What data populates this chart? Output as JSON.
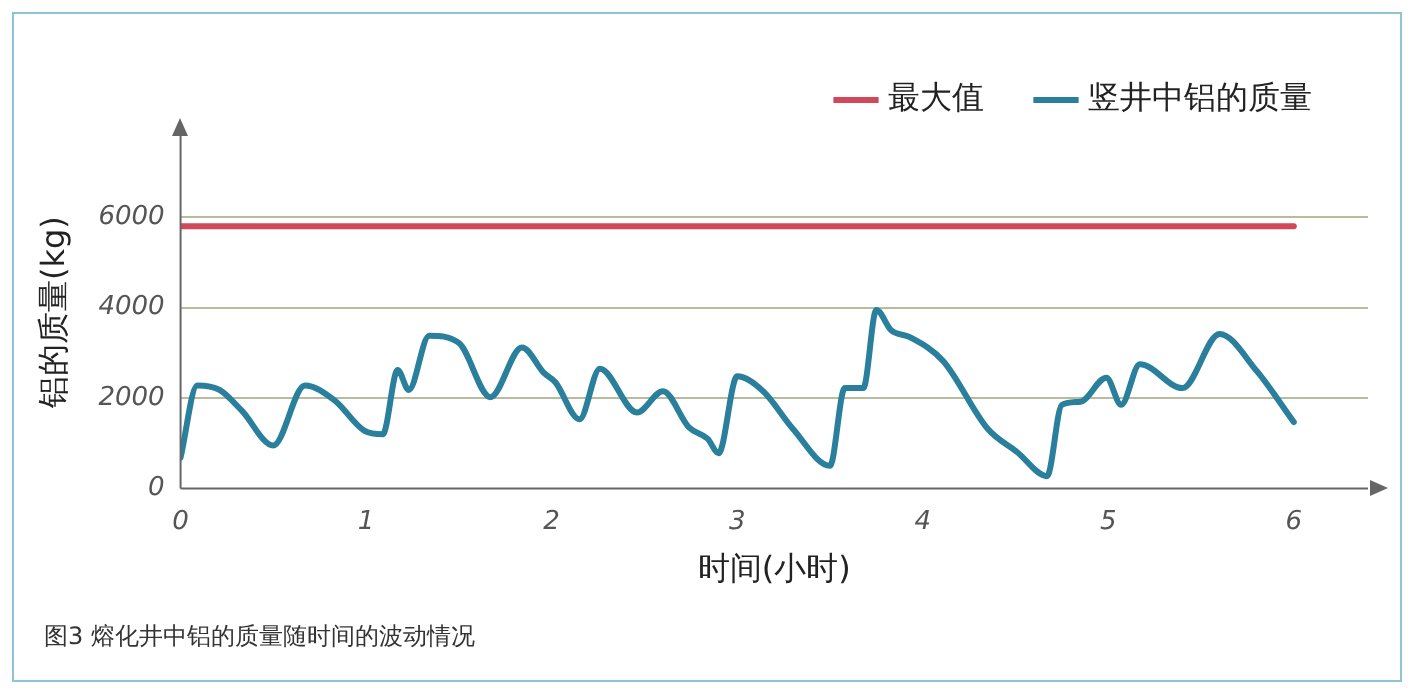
{
  "chart_data": {
    "type": "line",
    "xlabel": "时间(小时)",
    "ylabel": "铝的质量(kg)",
    "xlim": [
      0,
      6.4
    ],
    "xticks": [
      0,
      1,
      2,
      3,
      4,
      5,
      6
    ],
    "ylim": [
      0,
      7800
    ],
    "yticks": [
      0,
      2000,
      4000,
      6000
    ],
    "grid": "y",
    "legend": "top right",
    "marker": "none",
    "line_style": "solid",
    "series": [
      {
        "name": "最大值",
        "color": "#d0485a",
        "x": [
          0,
          6
        ],
        "values": [
          5800,
          5800
        ]
      },
      {
        "name": "竖井中铝的质量",
        "color": "#2a809c",
        "x": [
          0,
          0.09,
          0.21,
          0.33,
          0.5,
          0.67,
          0.83,
          0.99,
          1.09,
          1.17,
          1.23,
          1.34,
          1.5,
          1.67,
          1.84,
          1.96,
          2.02,
          2.15,
          2.26,
          2.46,
          2.6,
          2.74,
          2.84,
          2.9,
          3,
          3.14,
          3.3,
          3.5,
          3.58,
          3.68,
          3.75,
          3.83,
          3.93,
          4.11,
          4.35,
          4.51,
          4.67,
          4.75,
          4.85,
          4.99,
          5.07,
          5.17,
          5.4,
          5.6,
          5.8,
          6
        ],
        "values": [
          680,
          2280,
          2180,
          1720,
          950,
          2280,
          1950,
          1280,
          1200,
          2620,
          2180,
          3380,
          3220,
          2020,
          3120,
          2550,
          2350,
          1530,
          2650,
          1680,
          2150,
          1350,
          1100,
          780,
          2480,
          2150,
          1320,
          500,
          2220,
          2220,
          3950,
          3500,
          3350,
          2820,
          1320,
          800,
          270,
          1850,
          1920,
          2450,
          1850,
          2750,
          2220,
          3420,
          2600,
          1470
        ]
      }
    ],
    "annotations": [
      "图3 熔化井中铝的质量随时间的波动情况"
    ]
  }
}
